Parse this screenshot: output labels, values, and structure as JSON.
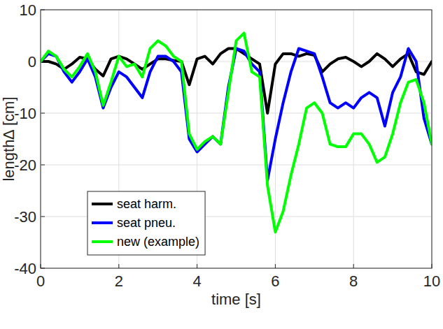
{
  "chart_data": {
    "type": "line",
    "x_label": "time [s]",
    "y_label": "length∆ [cm]",
    "x": [
      0,
      0.2,
      0.4,
      0.6,
      0.8,
      1.0,
      1.2,
      1.4,
      1.6,
      1.8,
      2.0,
      2.2,
      2.4,
      2.6,
      2.8,
      3.0,
      3.2,
      3.4,
      3.6,
      3.8,
      4.0,
      4.2,
      4.4,
      4.6,
      4.8,
      5.0,
      5.2,
      5.4,
      5.6,
      5.8,
      6.0,
      6.2,
      6.4,
      6.6,
      6.8,
      7.0,
      7.2,
      7.4,
      7.6,
      7.8,
      8.0,
      8.2,
      8.4,
      8.6,
      8.8,
      9.0,
      9.2,
      9.4,
      9.6,
      9.8,
      10
    ],
    "series": [
      {
        "name": "seat harm.",
        "color": "#000000",
        "values": [
          0,
          0,
          -0.5,
          -1.5,
          -0.5,
          0.8,
          0.5,
          -1.5,
          -2.8,
          0.5,
          1,
          0.5,
          -0.5,
          -1.5,
          -0.5,
          0.5,
          0.5,
          0.2,
          0,
          -4.5,
          0.5,
          1,
          -0.5,
          1.5,
          2.5,
          2.5,
          1.5,
          0.5,
          -0.5,
          -10,
          -0.5,
          1.5,
          1.5,
          1,
          1.5,
          1.2,
          -2,
          -0.5,
          0.5,
          0.8,
          0,
          -1,
          0,
          1.5,
          0.5,
          -1,
          0.5,
          1.5,
          -2,
          -2.5,
          0
        ]
      },
      {
        "name": "seat pneu.",
        "color": "#0000ff",
        "values": [
          0,
          1.5,
          1,
          -2,
          -4,
          -2,
          0.5,
          -3,
          -9,
          -5,
          -2,
          -3,
          -5,
          -7,
          -2,
          1,
          1,
          0,
          -2,
          -15,
          -17.5,
          -16,
          -14.5,
          -16,
          -5,
          2.5,
          2,
          -0.5,
          -2,
          -23,
          -15,
          -8,
          -2,
          2.5,
          2,
          1.5,
          -3,
          -8,
          -9,
          -8,
          -9,
          -7,
          -6,
          -7,
          -12.5,
          -6,
          -3,
          2.5,
          0,
          -11,
          -16
        ]
      },
      {
        "name": "new (example)",
        "color": "#00ff00",
        "values": [
          0,
          2,
          1,
          -1.5,
          -3,
          -1,
          1.5,
          -2,
          -8.5,
          -4,
          1,
          -1,
          -0.5,
          -3,
          2.5,
          4,
          3,
          1,
          0,
          -14,
          -17,
          -15.5,
          -14.5,
          -16,
          -6,
          4,
          5.5,
          -2,
          -3,
          -24,
          -33,
          -29,
          -22,
          -16,
          -9,
          -8,
          -10,
          -16,
          -16.5,
          -16.5,
          -14,
          -14,
          -16,
          -19.5,
          -18.5,
          -14,
          -8,
          -4,
          -3.5,
          -8,
          -16
        ]
      }
    ],
    "xlim": [
      0,
      10
    ],
    "ylim": [
      -40,
      10
    ],
    "xticks": [
      0,
      2,
      4,
      6,
      8,
      10
    ],
    "yticks": [
      -40,
      -30,
      -20,
      -10,
      0,
      10
    ],
    "grid": true,
    "legend": "lower left"
  }
}
